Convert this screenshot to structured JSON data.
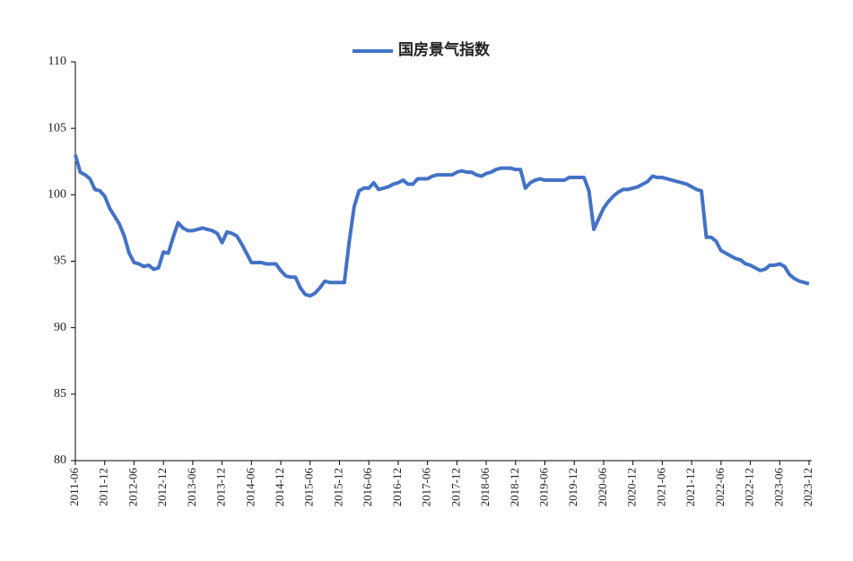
{
  "chart_data": {
    "type": "line",
    "categories": [
      "2011-06",
      null,
      null,
      null,
      null,
      null,
      "2011-12",
      null,
      null,
      null,
      null,
      null,
      "2012-06",
      null,
      null,
      null,
      null,
      null,
      "2012-12",
      null,
      null,
      null,
      null,
      null,
      "2013-06",
      null,
      null,
      null,
      null,
      null,
      "2013-12",
      null,
      null,
      null,
      null,
      null,
      "2014-06",
      null,
      null,
      null,
      null,
      null,
      "2014-12",
      null,
      null,
      null,
      null,
      null,
      "2015-06",
      null,
      null,
      null,
      null,
      null,
      "2015-12",
      null,
      null,
      null,
      null,
      null,
      "2016-06",
      null,
      null,
      null,
      null,
      null,
      "2016-12",
      null,
      null,
      null,
      null,
      null,
      "2017-06",
      null,
      null,
      null,
      null,
      null,
      "2017-12",
      null,
      null,
      null,
      null,
      null,
      "2018-06",
      null,
      null,
      null,
      null,
      null,
      "2018-12",
      null,
      null,
      null,
      null,
      null,
      "2019-06",
      null,
      null,
      null,
      null,
      null,
      "2019-12",
      null,
      null,
      null,
      null,
      null,
      "2020-06",
      null,
      null,
      null,
      null,
      null,
      "2020-12",
      null,
      null,
      null,
      null,
      null,
      "2021-06",
      null,
      null,
      null,
      null,
      null,
      "2021-12",
      null,
      null,
      null,
      null,
      null,
      "2022-06",
      null,
      null,
      null,
      null,
      null,
      "2022-12",
      null,
      null,
      null,
      null,
      null,
      "2023-06",
      null,
      null,
      null,
      null,
      null,
      "2023-12"
    ],
    "series": [
      {
        "name": "国房景气指数",
        "color": "#4472c4",
        "values": [
          103.0,
          101.7,
          101.5,
          101.2,
          100.4,
          100.3,
          99.9,
          99.0,
          98.4,
          97.8,
          96.9,
          95.6,
          94.9,
          94.8,
          94.6,
          94.7,
          94.4,
          94.5,
          95.7,
          95.6,
          96.8,
          97.9,
          97.5,
          97.3,
          97.3,
          97.4,
          97.5,
          97.4,
          97.3,
          97.1,
          96.4,
          97.2,
          97.1,
          96.9,
          96.3,
          95.6,
          94.9,
          94.9,
          94.9,
          94.8,
          94.8,
          94.8,
          94.3,
          93.9,
          93.8,
          93.8,
          93.0,
          92.5,
          92.4,
          92.6,
          93.0,
          93.5,
          93.4,
          93.4,
          93.4,
          93.4,
          96.5,
          99.1,
          100.3,
          100.5,
          100.5,
          100.9,
          100.4,
          100.5,
          100.6,
          100.8,
          100.9,
          101.1,
          100.8,
          100.8,
          101.2,
          101.2,
          101.2,
          101.4,
          101.5,
          101.5,
          101.5,
          101.5,
          101.7,
          101.8,
          101.7,
          101.7,
          101.5,
          101.4,
          101.6,
          101.7,
          101.9,
          102.0,
          102.0,
          102.0,
          101.9,
          101.9,
          100.5,
          100.9,
          101.1,
          101.2,
          101.1,
          101.1,
          101.1,
          101.1,
          101.1,
          101.3,
          101.3,
          101.3,
          101.3,
          100.3,
          97.4,
          98.2,
          99.0,
          99.5,
          99.9,
          100.2,
          100.4,
          100.4,
          100.5,
          100.6,
          100.8,
          101.0,
          101.4,
          101.3,
          101.3,
          101.2,
          101.1,
          101.0,
          100.9,
          100.8,
          100.6,
          100.4,
          100.3,
          96.8,
          96.8,
          96.5,
          95.8,
          95.6,
          95.4,
          95.2,
          95.1,
          94.8,
          94.7,
          94.5,
          94.3,
          94.4,
          94.7,
          94.7,
          94.8,
          94.6,
          94.0,
          93.7,
          93.5,
          93.4,
          93.3
        ]
      }
    ],
    "ylim": [
      80,
      110
    ],
    "yticks": [
      80,
      85,
      90,
      95,
      100,
      105,
      110
    ],
    "grid": false,
    "legend": "top"
  }
}
